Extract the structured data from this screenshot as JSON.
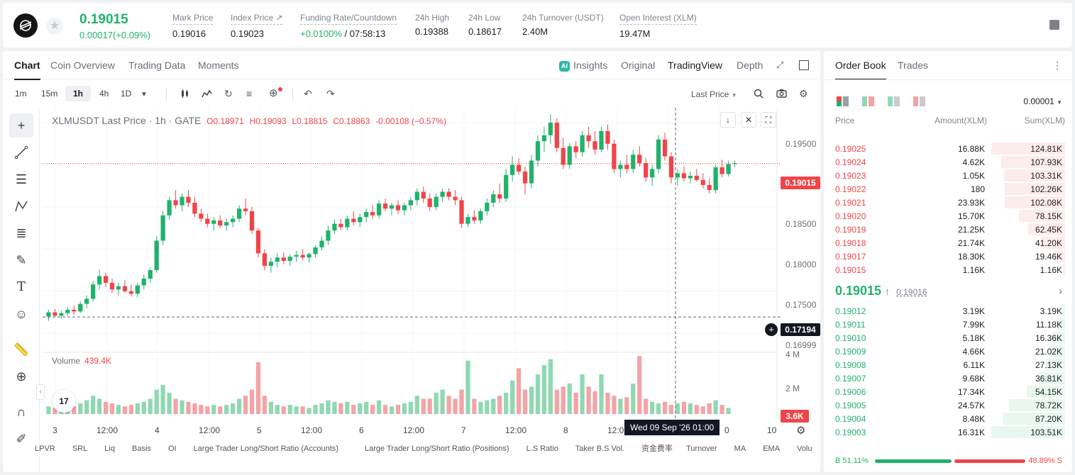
{
  "header": {
    "price": "0.19015",
    "change": "0.00017(+0.09%)",
    "stats": [
      {
        "label": "Mark Price",
        "value": "0.19016"
      },
      {
        "label": "Index Price ↗",
        "value": "0.19023"
      },
      {
        "label": "Funding Rate/Countdown",
        "value_green": "+0.0100%",
        "value": " / 07:58:13"
      },
      {
        "label": "24h High",
        "value": "0.19388"
      },
      {
        "label": "24h Low",
        "value": "0.18617"
      },
      {
        "label": "24h Turnover (USDT)",
        "value": "2.40M"
      },
      {
        "label": "Open Interest (XLM)",
        "value": "19.47M"
      }
    ]
  },
  "chart_tabs": [
    "Chart",
    "Coin Overview",
    "Trading Data",
    "Moments"
  ],
  "view_tabs": {
    "insights": "Insights",
    "ai_badge": "AI",
    "original": "Original",
    "tradingview": "TradingView",
    "depth": "Depth"
  },
  "intervals": [
    "1m",
    "15m",
    "1h",
    "4h",
    "1D"
  ],
  "last_price_label": "Last Price",
  "legend": {
    "symbol": "XLMUSDT Last Price · 1h · GATE",
    "o_label": "O",
    "o": "0.18971",
    "h_label": "H",
    "h": "0.19093",
    "l_label": "L",
    "l": "0.18815",
    "c_label": "C",
    "c": "0.18863",
    "chg": "-0.00108 (−0.57%)"
  },
  "volume_legend": {
    "label": "Volume",
    "value": "439.4K"
  },
  "y_ticks": [
    "0.19500",
    "0.18500",
    "0.18000",
    "0.17500",
    "0.16999"
  ],
  "y_labels": {
    "current": "0.19015",
    "cross": "0.17194",
    "vol_current": "3.6K"
  },
  "vol_ticks": [
    "4 M",
    "2 M"
  ],
  "x_ticks": [
    "3",
    "12:00",
    "4",
    "12:00",
    "5",
    "12:00",
    "6",
    "12:00",
    "7",
    "12:00",
    "8",
    "12:0",
    "0",
    "10"
  ],
  "hover_date": "Wed 09 Sep '26   01:00",
  "indicators": [
    "LPVR",
    "SRL",
    "Liq",
    "Basis",
    "OI",
    "Large Trader Long/Short Ratio (Accounts)",
    "Large Trader Long/Short Ratio (Positions)",
    "L.S Ratio",
    "Taker B.S Vol.",
    "资金费率",
    "Turnover",
    "MA",
    "EMA",
    "Volu"
  ],
  "tv_logo": "17",
  "colors": {
    "up": "#20b26c",
    "down": "#ef454a",
    "vol_up": "#8fd8b3",
    "vol_down": "#f4a3a6"
  },
  "chart_data": {
    "type": "candlestick",
    "symbol": "XLMUSDT",
    "interval": "1h",
    "candles": [
      [
        0.172,
        0.1728,
        0.1715,
        0.1725
      ],
      [
        0.1725,
        0.1729,
        0.1719,
        0.1721
      ],
      [
        0.1721,
        0.1727,
        0.1717,
        0.1724
      ],
      [
        0.1724,
        0.1731,
        0.1721,
        0.1728
      ],
      [
        0.1728,
        0.1733,
        0.1722,
        0.1726
      ],
      [
        0.1726,
        0.1738,
        0.1724,
        0.1735
      ],
      [
        0.1735,
        0.1745,
        0.173,
        0.1741
      ],
      [
        0.1741,
        0.1762,
        0.1738,
        0.1758
      ],
      [
        0.1758,
        0.1775,
        0.1752,
        0.1768
      ],
      [
        0.1768,
        0.1772,
        0.1755,
        0.176
      ],
      [
        0.176,
        0.1765,
        0.1748,
        0.1752
      ],
      [
        0.1752,
        0.176,
        0.1745,
        0.1756
      ],
      [
        0.1756,
        0.1763,
        0.1748,
        0.175
      ],
      [
        0.175,
        0.1758,
        0.1744,
        0.1747
      ],
      [
        0.1747,
        0.176,
        0.1743,
        0.1757
      ],
      [
        0.1757,
        0.177,
        0.1752,
        0.1765
      ],
      [
        0.1765,
        0.1778,
        0.176,
        0.1775
      ],
      [
        0.1775,
        0.1815,
        0.1772,
        0.181
      ],
      [
        0.181,
        0.1845,
        0.1805,
        0.184
      ],
      [
        0.184,
        0.1862,
        0.1835,
        0.1858
      ],
      [
        0.1858,
        0.187,
        0.1848,
        0.1852
      ],
      [
        0.1852,
        0.1866,
        0.1845,
        0.1862
      ],
      [
        0.1862,
        0.187,
        0.185,
        0.1855
      ],
      [
        0.1855,
        0.1862,
        0.1838,
        0.1842
      ],
      [
        0.1842,
        0.1848,
        0.1832,
        0.1836
      ],
      [
        0.1836,
        0.1842,
        0.1826,
        0.183
      ],
      [
        0.183,
        0.1838,
        0.1822,
        0.1834
      ],
      [
        0.1834,
        0.184,
        0.1825,
        0.1828
      ],
      [
        0.1828,
        0.1836,
        0.1822,
        0.1832
      ],
      [
        0.1832,
        0.184,
        0.1826,
        0.1836
      ],
      [
        0.1836,
        0.1852,
        0.1832,
        0.1848
      ],
      [
        0.1848,
        0.186,
        0.184,
        0.1845
      ],
      [
        0.1845,
        0.185,
        0.1818,
        0.1822
      ],
      [
        0.1822,
        0.1825,
        0.179,
        0.1795
      ],
      [
        0.1795,
        0.18,
        0.1775,
        0.178
      ],
      [
        0.178,
        0.179,
        0.1772,
        0.1785
      ],
      [
        0.1785,
        0.1795,
        0.1778,
        0.179
      ],
      [
        0.179,
        0.1796,
        0.1782,
        0.1786
      ],
      [
        0.1786,
        0.1794,
        0.178,
        0.1791
      ],
      [
        0.1791,
        0.1798,
        0.1785,
        0.1793
      ],
      [
        0.1793,
        0.18,
        0.1787,
        0.179
      ],
      [
        0.179,
        0.1796,
        0.1784,
        0.1794
      ],
      [
        0.1794,
        0.1805,
        0.179,
        0.1802
      ],
      [
        0.1802,
        0.1815,
        0.1798,
        0.181
      ],
      [
        0.181,
        0.1828,
        0.1805,
        0.1822
      ],
      [
        0.1822,
        0.1835,
        0.1818,
        0.183
      ],
      [
        0.183,
        0.1836,
        0.1822,
        0.1826
      ],
      [
        0.1826,
        0.184,
        0.1822,
        0.1836
      ],
      [
        0.1836,
        0.1845,
        0.1828,
        0.1832
      ],
      [
        0.1832,
        0.1842,
        0.1826,
        0.1838
      ],
      [
        0.1838,
        0.1848,
        0.1832,
        0.1844
      ],
      [
        0.1844,
        0.1852,
        0.1836,
        0.184
      ],
      [
        0.184,
        0.1858,
        0.1836,
        0.1854
      ],
      [
        0.1854,
        0.186,
        0.1845,
        0.1848
      ],
      [
        0.1848,
        0.1855,
        0.184,
        0.1852
      ],
      [
        0.1852,
        0.1858,
        0.1842,
        0.1846
      ],
      [
        0.1846,
        0.1855,
        0.184,
        0.1852
      ],
      [
        0.1852,
        0.1862,
        0.1846,
        0.1858
      ],
      [
        0.1858,
        0.1872,
        0.1852,
        0.1868
      ],
      [
        0.1868,
        0.1874,
        0.1855,
        0.186
      ],
      [
        0.186,
        0.1866,
        0.1845,
        0.185
      ],
      [
        0.185,
        0.1866,
        0.1846,
        0.1862
      ],
      [
        0.1862,
        0.1872,
        0.1856,
        0.1868
      ],
      [
        0.1868,
        0.1872,
        0.1858,
        0.1862
      ],
      [
        0.1862,
        0.187,
        0.1852,
        0.1858
      ],
      [
        0.1858,
        0.1862,
        0.1825,
        0.183
      ],
      [
        0.183,
        0.1842,
        0.1826,
        0.1838
      ],
      [
        0.1838,
        0.1846,
        0.183,
        0.1834
      ],
      [
        0.1834,
        0.1848,
        0.183,
        0.1845
      ],
      [
        0.1845,
        0.186,
        0.184,
        0.1855
      ],
      [
        0.1855,
        0.187,
        0.185,
        0.1865
      ],
      [
        0.1865,
        0.1878,
        0.1855,
        0.186
      ],
      [
        0.186,
        0.1895,
        0.1856,
        0.1888
      ],
      [
        0.1888,
        0.191,
        0.188,
        0.19
      ],
      [
        0.19,
        0.1908,
        0.1888,
        0.1892
      ],
      [
        0.1892,
        0.1898,
        0.1865,
        0.1878
      ],
      [
        0.1878,
        0.1912,
        0.1872,
        0.1905
      ],
      [
        0.1905,
        0.1935,
        0.1898,
        0.1928
      ],
      [
        0.1928,
        0.1945,
        0.1915,
        0.1935
      ],
      [
        0.1935,
        0.196,
        0.1925,
        0.195
      ],
      [
        0.195,
        0.1955,
        0.1915,
        0.192
      ],
      [
        0.192,
        0.1932,
        0.1895,
        0.19
      ],
      [
        0.19,
        0.1926,
        0.1895,
        0.1922
      ],
      [
        0.1922,
        0.1928,
        0.1908,
        0.1915
      ],
      [
        0.1915,
        0.194,
        0.191,
        0.1935
      ],
      [
        0.1935,
        0.1945,
        0.192,
        0.1928
      ],
      [
        0.1928,
        0.194,
        0.1912,
        0.1918
      ],
      [
        0.1918,
        0.1945,
        0.1915,
        0.194
      ],
      [
        0.194,
        0.1948,
        0.1918,
        0.1925
      ],
      [
        0.1925,
        0.193,
        0.189,
        0.1895
      ],
      [
        0.1895,
        0.1905,
        0.1885,
        0.19
      ],
      [
        0.19,
        0.1912,
        0.189,
        0.1895
      ],
      [
        0.1895,
        0.1918,
        0.189,
        0.1912
      ],
      [
        0.1912,
        0.1922,
        0.1898,
        0.1902
      ],
      [
        0.1902,
        0.1908,
        0.188,
        0.1885
      ],
      [
        0.1885,
        0.19,
        0.1875,
        0.1895
      ],
      [
        0.1895,
        0.1935,
        0.189,
        0.193
      ],
      [
        0.193,
        0.1938,
        0.1905,
        0.191
      ],
      [
        0.191,
        0.1915,
        0.1878,
        0.1885
      ],
      [
        0.1885,
        0.1895,
        0.1875,
        0.189
      ],
      [
        0.189,
        0.1898,
        0.188,
        0.1884
      ],
      [
        0.1884,
        0.1892,
        0.1878,
        0.1887
      ],
      [
        0.1887,
        0.1895,
        0.188,
        0.1882
      ],
      [
        0.1882,
        0.189,
        0.1872,
        0.1876
      ],
      [
        0.1876,
        0.1884,
        0.1866,
        0.187
      ],
      [
        0.187,
        0.19,
        0.1866,
        0.1897
      ],
      [
        0.1897,
        0.1906,
        0.1885,
        0.1889
      ],
      [
        0.1889,
        0.1905,
        0.1886,
        0.1901
      ],
      [
        0.1901,
        0.1905,
        0.1897,
        0.1902
      ]
    ],
    "volumes": [
      0.5,
      0.4,
      0.5,
      0.6,
      0.5,
      0.7,
      0.9,
      1.2,
      1.0,
      0.8,
      0.7,
      0.6,
      0.5,
      0.6,
      0.7,
      0.8,
      1.0,
      1.6,
      1.9,
      1.4,
      1.0,
      0.9,
      0.8,
      0.7,
      0.6,
      0.5,
      0.6,
      0.5,
      0.6,
      0.7,
      1.0,
      1.2,
      1.6,
      3.4,
      1.2,
      0.8,
      0.6,
      0.5,
      0.6,
      0.5,
      0.5,
      0.4,
      0.6,
      0.7,
      0.9,
      0.8,
      0.7,
      0.8,
      0.6,
      0.7,
      0.8,
      0.6,
      0.9,
      0.6,
      0.5,
      0.6,
      0.7,
      0.8,
      1.2,
      1.0,
      1.0,
      1.4,
      1.6,
      1.2,
      1.0,
      1.6,
      3.5,
      1.0,
      0.8,
      0.9,
      1.0,
      1.2,
      1.4,
      2.2,
      3.0,
      1.6,
      1.8,
      2.6,
      3.2,
      3.6,
      1.6,
      1.8,
      2.0,
      1.4,
      2.6,
      1.8,
      1.5,
      2.6,
      1.4,
      1.2,
      1.0,
      1.1,
      2.0,
      3.8,
      1.0,
      0.8,
      0.7,
      0.8,
      0.6,
      0.7,
      0.8,
      0.7,
      0.6,
      0.5,
      0.7,
      0.9,
      0.6,
      0.4
    ],
    "ylim": [
      0.168,
      0.1966
    ],
    "current_price": 0.19015,
    "crosshair_price": 0.17194
  },
  "orderbook": {
    "tabs": [
      "Order Book",
      "Trades"
    ],
    "precision": "0.00001",
    "headers": {
      "price": "Price",
      "amount": "Amount(XLM)",
      "sum": "Sum(XLM)"
    },
    "asks": [
      {
        "price": "0.19025",
        "amount": "16.88K",
        "sum": "124.81K",
        "depth": 1.0
      },
      {
        "price": "0.19024",
        "amount": "4.62K",
        "sum": "107.93K",
        "depth": 0.865
      },
      {
        "price": "0.19023",
        "amount": "1.05K",
        "sum": "103.31K",
        "depth": 0.828
      },
      {
        "price": "0.19022",
        "amount": "180",
        "sum": "102.26K",
        "depth": 0.819
      },
      {
        "price": "0.19021",
        "amount": "23.93K",
        "sum": "102.08K",
        "depth": 0.818
      },
      {
        "price": "0.19020",
        "amount": "15.70K",
        "sum": "78.15K",
        "depth": 0.626
      },
      {
        "price": "0.19019",
        "amount": "21.25K",
        "sum": "62.45K",
        "depth": 0.5
      },
      {
        "price": "0.19018",
        "amount": "21.74K",
        "sum": "41.20K",
        "depth": 0.33
      },
      {
        "price": "0.19017",
        "amount": "18.30K",
        "sum": "19.46K",
        "depth": 0.156
      },
      {
        "price": "0.19015",
        "amount": "1.16K",
        "sum": "1.16K",
        "depth": 0.01
      }
    ],
    "mid": {
      "price": "0.19015",
      "arrow": "↑",
      "mark": "0.19016"
    },
    "bids": [
      {
        "price": "0.19012",
        "amount": "3.19K",
        "sum": "3.19K",
        "depth": 0.03
      },
      {
        "price": "0.19011",
        "amount": "7.99K",
        "sum": "11.18K",
        "depth": 0.108
      },
      {
        "price": "0.19010",
        "amount": "5.18K",
        "sum": "16.36K",
        "depth": 0.158
      },
      {
        "price": "0.19009",
        "amount": "4.66K",
        "sum": "21.02K",
        "depth": 0.203
      },
      {
        "price": "0.19008",
        "amount": "6.11K",
        "sum": "27.13K",
        "depth": 0.262
      },
      {
        "price": "0.19007",
        "amount": "9.68K",
        "sum": "36.81K",
        "depth": 0.355
      },
      {
        "price": "0.19006",
        "amount": "17.34K",
        "sum": "54.15K",
        "depth": 0.523
      },
      {
        "price": "0.19005",
        "amount": "24.57K",
        "sum": "78.72K",
        "depth": 0.76
      },
      {
        "price": "0.19004",
        "amount": "8.48K",
        "sum": "87.20K",
        "depth": 0.842
      },
      {
        "price": "0.19003",
        "amount": "16.31K",
        "sum": "103.51K",
        "depth": 1.0
      }
    ],
    "ratio": {
      "buy_label": "B",
      "buy": "51.11%",
      "sell": "48.89%",
      "sell_label": "S"
    }
  }
}
